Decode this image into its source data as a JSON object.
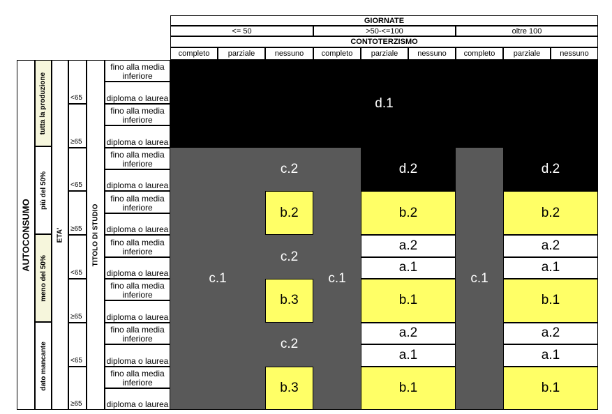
{
  "header": {
    "giornate": "GIORNATE",
    "contoterzismo": "CONTOTERZISMO",
    "ranges": [
      "<= 50",
      ">50-<=100",
      "oltre 100"
    ],
    "subcols": [
      "completo",
      "parziale",
      "nessuno"
    ]
  },
  "left": {
    "autoconsumo": "AUTOCONSUMO",
    "eta": "ETA'",
    "titolo": "TITOLO DI STUDIO",
    "groups": [
      "tutta la produzione",
      "più del 50%",
      "meno del 50%",
      "dato mancante"
    ],
    "ages": [
      "<65",
      "≥65"
    ],
    "titolo_rows": [
      "fino alla media inferiore",
      "diploma o laurea"
    ]
  },
  "cells": {
    "d1": "d.1",
    "d2": "d.2",
    "c1": "c.1",
    "c2": "c.2",
    "b1": "b.1",
    "b2": "b.2",
    "b3": "b.3",
    "a1": "a.1",
    "a2": "a.2"
  },
  "colors": {
    "black": "#000000",
    "gray": "#595959",
    "yellow": "#ffff66",
    "white": "#ffffff"
  }
}
